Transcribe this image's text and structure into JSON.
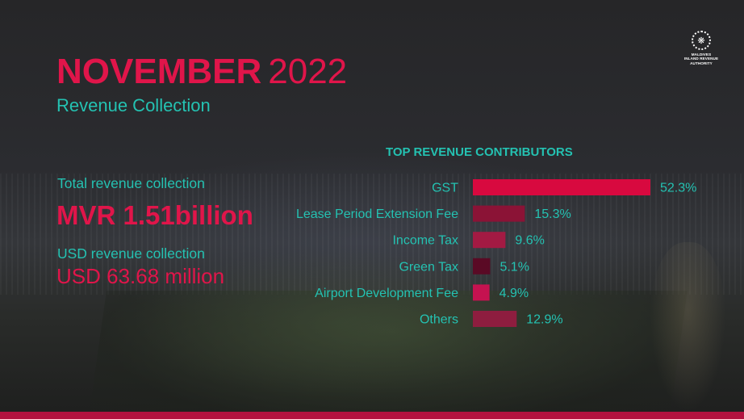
{
  "header": {
    "month": "NOVEMBER",
    "year": "2022",
    "subtitle": "Revenue Collection"
  },
  "logo": {
    "lines": [
      "MALDIVES",
      "INLAND REVENUE",
      "AUTHORITY"
    ],
    "icon": "mira-emblem-icon"
  },
  "kpis": {
    "total_label": "Total revenue collection",
    "total_value": "MVR 1.51billion",
    "usd_label": "USD revenue collection",
    "usd_value": "USD 63.68 million"
  },
  "colors": {
    "accent_red": "#e0154a",
    "accent_teal": "#24c2b2",
    "bottom_bar": "#b3123f"
  },
  "chart_data": {
    "type": "bar",
    "orientation": "horizontal",
    "title": "TOP REVENUE CONTRIBUTORS",
    "categories": [
      "GST",
      "Lease Period Extension Fee",
      "Income Tax",
      "Green Tax",
      "Airport Development Fee",
      "Others"
    ],
    "values": [
      52.3,
      15.3,
      9.6,
      5.1,
      4.9,
      12.9
    ],
    "value_labels": [
      "52.3%",
      "15.3%",
      "9.6%",
      "5.1%",
      "4.9%",
      "12.9%"
    ],
    "bar_colors": [
      "#d8093f",
      "#8b1336",
      "#a31a43",
      "#5a0a25",
      "#c51250",
      "#8e1d3f"
    ],
    "unit": "%",
    "grid": false,
    "legend": "none"
  }
}
